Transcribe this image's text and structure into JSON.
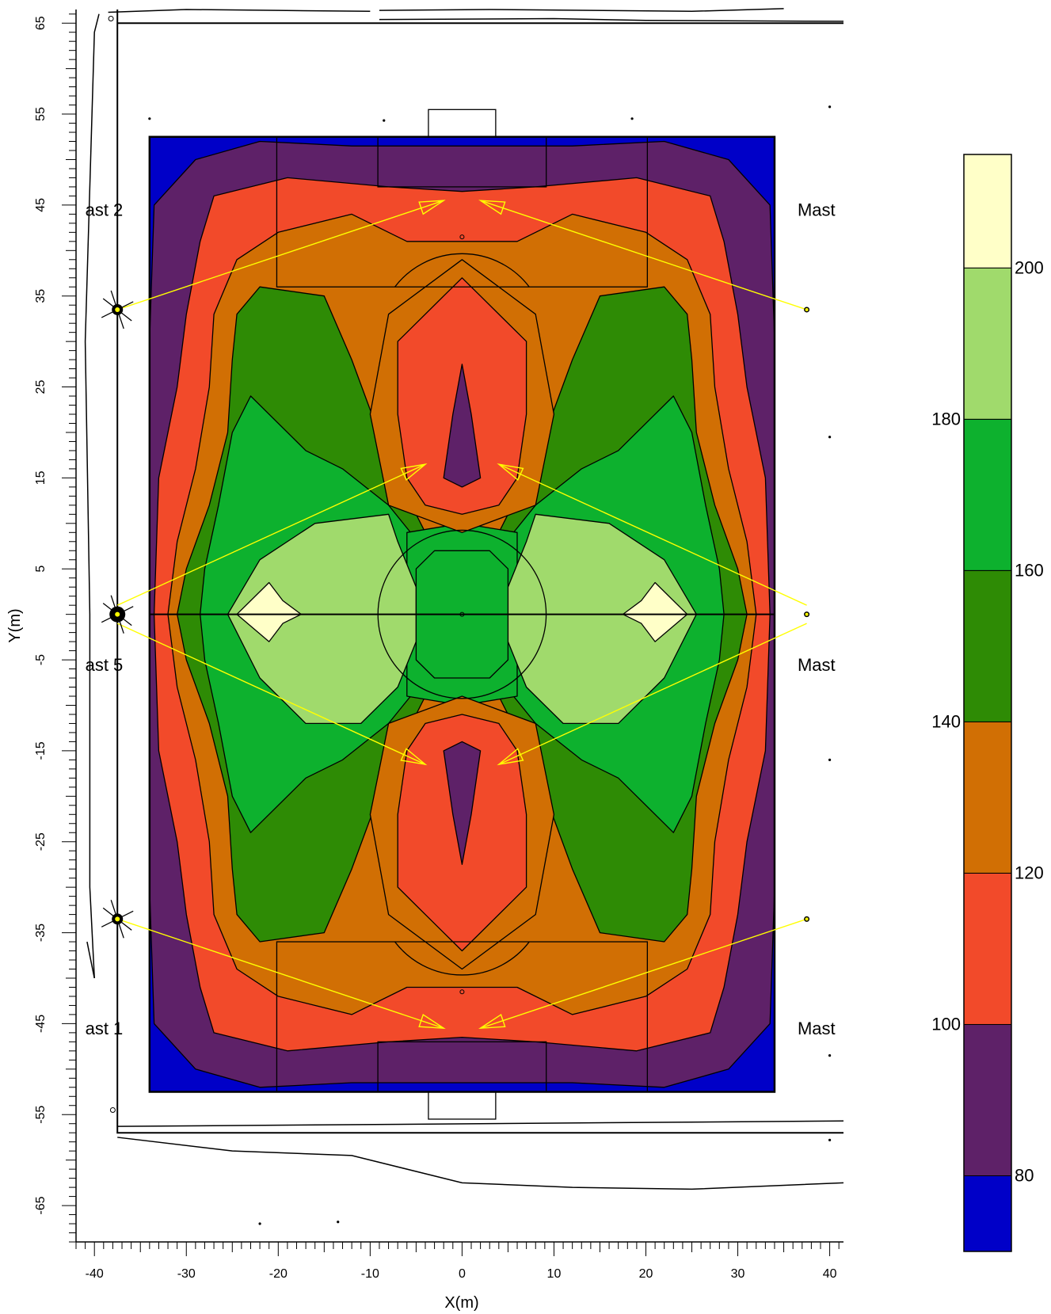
{
  "chart_data": {
    "type": "heatmap",
    "xlabel": "X(m)",
    "ylabel": "Y(m)",
    "x_ticks": [
      -40,
      -30,
      -20,
      -10,
      0,
      10,
      20,
      30,
      40
    ],
    "y_ticks": [
      65,
      55,
      45,
      35,
      25,
      15,
      5,
      -5,
      -15,
      -25,
      -35,
      -45,
      -55,
      -65
    ],
    "xlim": [
      -42,
      41.5
    ],
    "ylim": [
      -69,
      66.5
    ],
    "field_extent": {
      "x": [
        -34,
        34
      ],
      "y": [
        -52.5,
        52.5
      ]
    },
    "legend": {
      "placement": "right",
      "tick_labels": [
        "200",
        "180",
        "160",
        "140",
        "120",
        "100",
        "80"
      ],
      "bands": [
        {
          "from": 200,
          "to": 215,
          "color": "#FFFFC8"
        },
        {
          "from": 190,
          "to": 200,
          "color": "#A0DA6C"
        },
        {
          "from": 170,
          "to": 180,
          "color": "#0DB12E"
        },
        {
          "from": 150,
          "to": 160,
          "color": "#2E8B05"
        },
        {
          "from": 130,
          "to": 140,
          "color": "#D16F04"
        },
        {
          "from": 110,
          "to": 120,
          "color": "#F24A2A"
        },
        {
          "from": 90,
          "to": 100,
          "color": "#5E2168"
        },
        {
          "from": 70,
          "to": 80,
          "color": "#0000C8"
        }
      ]
    },
    "mast_labels": [
      {
        "text": "ast 2",
        "x": -41,
        "y": 44.5
      },
      {
        "text": "ast 5",
        "x": -41,
        "y": -5.5
      },
      {
        "text": "ast 1",
        "x": -41,
        "y": -45.5
      },
      {
        "text": "Mast",
        "x": 36.5,
        "y": 44.5
      },
      {
        "text": "Mast",
        "x": 36.5,
        "y": -5.5
      },
      {
        "text": "Mast",
        "x": 36.5,
        "y": -45.5
      }
    ],
    "masts": [
      {
        "x": -37.5,
        "y": 33.5
      },
      {
        "x": -37.5,
        "y": 0
      },
      {
        "x": -37.5,
        "y": -33.5
      },
      {
        "x": 37.5,
        "y": 33.5
      },
      {
        "x": 37.5,
        "y": 0
      },
      {
        "x": 37.5,
        "y": -33.5
      }
    ],
    "aim_points": [
      {
        "from": [
          -37.5,
          33.5
        ],
        "to": [
          -2,
          45.5
        ]
      },
      {
        "from": [
          37.5,
          33.5
        ],
        "to": [
          2,
          45.5
        ]
      },
      {
        "from": [
          -37.5,
          1
        ],
        "to": [
          -4,
          16.5
        ]
      },
      {
        "from": [
          37.5,
          1
        ],
        "to": [
          4,
          16.5
        ]
      },
      {
        "from": [
          -37.5,
          -1
        ],
        "to": [
          -4,
          -16.5
        ]
      },
      {
        "from": [
          37.5,
          -1
        ],
        "to": [
          4,
          -16.5
        ]
      },
      {
        "from": [
          -37.5,
          -33.5
        ],
        "to": [
          -2,
          -45.5
        ]
      },
      {
        "from": [
          37.5,
          -33.5
        ],
        "to": [
          2,
          -45.5
        ]
      }
    ],
    "colors": {
      "aim_line": "#FFFF00",
      "v210": "#FFFFC8",
      "v195": "#A0DA6C",
      "v175": "#0DB12E",
      "v155": "#2E8B05",
      "v135": "#D16F04",
      "v115": "#F24A2A",
      "v95": "#5E2168",
      "v75": "#0000C8"
    }
  }
}
